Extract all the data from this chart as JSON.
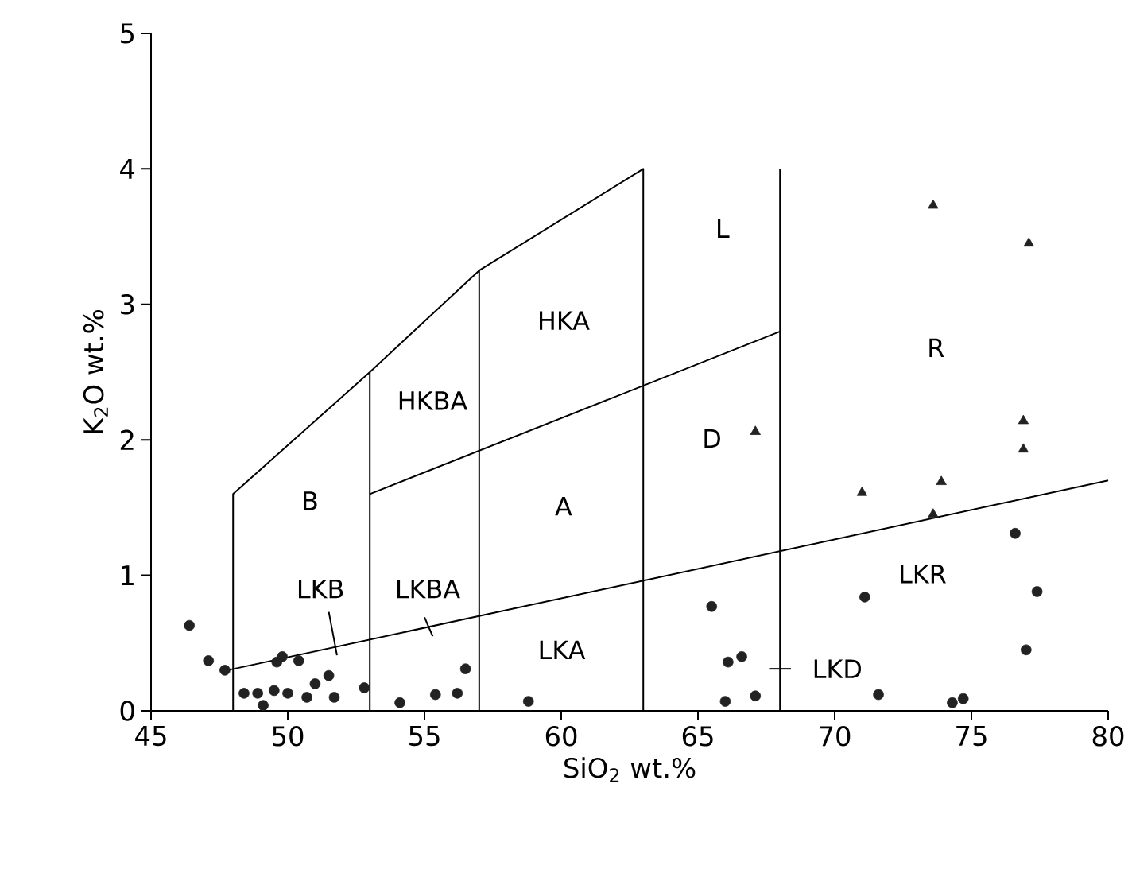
{
  "chart_data": {
    "type": "scatter",
    "xlabel": "SiO$_{2}$ wt.%",
    "ylabel": "K$_{2}$O wt.%",
    "xlim": [
      45,
      80
    ],
    "ylim": [
      0,
      5
    ],
    "xticks": [
      45,
      50,
      55,
      60,
      65,
      70,
      75,
      80
    ],
    "yticks": [
      0,
      1,
      2,
      3,
      4,
      5
    ],
    "series": [
      {
        "type": "line",
        "color": "#000000",
        "marker": "none",
        "x": [
          48,
          48,
          53,
          57,
          63,
          63
        ],
        "values": [
          0,
          1.6,
          2.5,
          3.25,
          4,
          0
        ]
      },
      {
        "type": "line",
        "color": "#000000",
        "marker": "none",
        "x": [
          53,
          53
        ],
        "values": [
          0,
          2.5
        ]
      },
      {
        "type": "line",
        "color": "#000000",
        "marker": "none",
        "x": [
          57,
          57
        ],
        "values": [
          0,
          3.25
        ]
      },
      {
        "type": "line",
        "color": "#000000",
        "marker": "none",
        "x": [
          53,
          68
        ],
        "values": [
          1.6,
          2.8
        ]
      },
      {
        "type": "line",
        "color": "#000000",
        "marker": "none",
        "x": [
          47.8,
          80
        ],
        "values": [
          0.3,
          1.7
        ]
      },
      {
        "type": "line",
        "color": "#000000",
        "marker": "none",
        "x": [
          68,
          68
        ],
        "values": [
          0,
          4
        ]
      },
      {
        "type": "line",
        "color": "#000000",
        "marker": "none",
        "x": [
          51.5,
          51.8
        ],
        "values": [
          0.73,
          0.41
        ]
      },
      {
        "type": "line",
        "color": "#000000",
        "marker": "none",
        "x": [
          55.0,
          55.3
        ],
        "values": [
          0.69,
          0.55
        ]
      },
      {
        "type": "line",
        "color": "#000000",
        "marker": "none",
        "x": [
          67.6,
          68.4
        ],
        "values": [
          0.31,
          0.31
        ]
      },
      {
        "color": "#222222",
        "marker": "circle",
        "x": [
          46.4,
          47.1,
          47.7,
          49.6,
          49.8,
          50.4,
          48.4,
          48.9,
          49.5,
          50.0,
          49.1,
          50.7,
          51.0,
          51.5,
          51.7,
          52.8,
          54.1,
          55.4,
          56.2,
          56.5,
          58.8,
          76.6,
          77.4,
          77.0,
          71.1,
          65.5,
          66.1,
          66.6,
          66.0,
          67.1,
          71.6,
          74.3,
          74.7
        ],
        "values": [
          0.63,
          0.37,
          0.3,
          0.36,
          0.4,
          0.37,
          0.13,
          0.13,
          0.15,
          0.13,
          0.04,
          0.1,
          0.2,
          0.26,
          0.1,
          0.17,
          0.06,
          0.12,
          0.13,
          0.31,
          0.07,
          1.31,
          0.88,
          0.45,
          0.84,
          0.77,
          0.36,
          0.4,
          0.07,
          0.11,
          0.12,
          0.06,
          0.09
        ]
      },
      {
        "color": "#222222",
        "marker": "triangle",
        "x": [
          73.6,
          77.1,
          67.1,
          76.9,
          76.9,
          71.0,
          73.9,
          73.6
        ],
        "values": [
          3.73,
          3.45,
          2.06,
          2.14,
          1.93,
          1.61,
          1.69,
          1.45
        ]
      }
    ],
    "annotations": [
      "L",
      "R",
      "D",
      "LKR",
      "LKD",
      "HKA",
      "HKBA",
      "B",
      "A",
      "LKB",
      "LKBA",
      "LKA"
    ]
  }
}
